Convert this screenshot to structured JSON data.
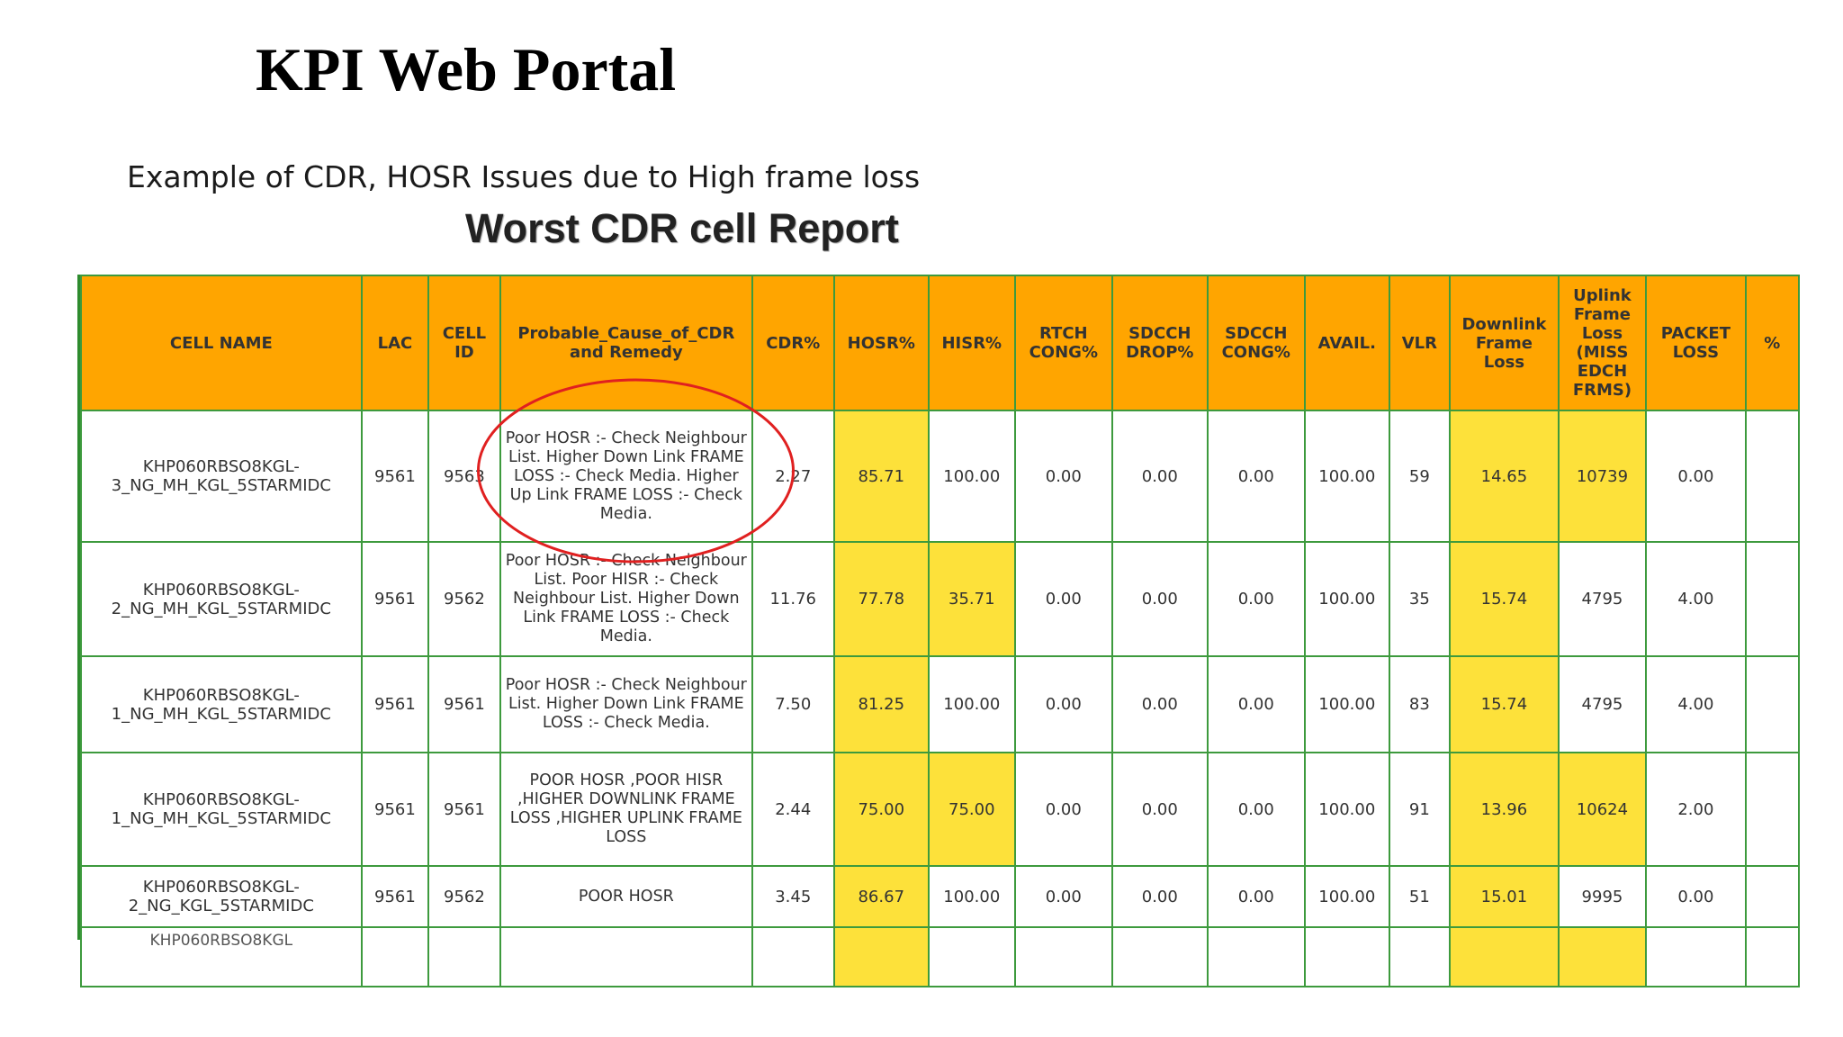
{
  "title": "KPI Web Portal",
  "subtitle": "Example of CDR, HOSR Issues due to High frame loss",
  "report_title": "Worst CDR cell Report",
  "colors": {
    "header": "#ffa500",
    "highlight": "#fde13a",
    "grid": "#3d9a3d",
    "annotation": "#e02020"
  },
  "table": {
    "headers": [
      "CELL NAME",
      "LAC",
      "CELL ID",
      "Probable_Cause_of_CDR and Remedy",
      "CDR%",
      "HOSR%",
      "HISR%",
      "RTCH CONG%",
      "SDCCH DROP%",
      "SDCCH CONG%",
      "AVAIL.",
      "VLR",
      "Downlink Frame Loss",
      "Uplink Frame Loss (MISS EDCH FRMS)",
      "PACKET LOSS",
      "%"
    ],
    "rows": [
      [
        "KHP060RBSO8KGL-3_NG_MH_KGL_5STARMIDC",
        "9561",
        "9563",
        "Poor HOSR :- Check Neighbour List. Higher Down Link FRAME LOSS :- Check Media. Higher Up Link FRAME LOSS :- Check Media.",
        "2.27",
        "85.71",
        "100.00",
        "0.00",
        "0.00",
        "0.00",
        "100.00",
        "59",
        "14.65",
        "10739",
        "0.00",
        ""
      ],
      [
        "KHP060RBSO8KGL-2_NG_MH_KGL_5STARMIDC",
        "9561",
        "9562",
        "Poor HOSR :- Check Neighbour List. Poor HISR :- Check Neighbour List. Higher Down Link FRAME LOSS :- Check Media.",
        "11.76",
        "77.78",
        "35.71",
        "0.00",
        "0.00",
        "0.00",
        "100.00",
        "35",
        "15.74",
        "4795",
        "4.00",
        ""
      ],
      [
        "KHP060RBSO8KGL-1_NG_MH_KGL_5STARMIDC",
        "9561",
        "9561",
        "Poor HOSR :- Check Neighbour List. Higher Down Link FRAME LOSS :- Check Media.",
        "7.50",
        "81.25",
        "100.00",
        "0.00",
        "0.00",
        "0.00",
        "100.00",
        "83",
        "15.74",
        "4795",
        "4.00",
        ""
      ],
      [
        "KHP060RBSO8KGL-1_NG_MH_KGL_5STARMIDC",
        "9561",
        "9561",
        "POOR HOSR ,POOR HISR ,HIGHER DOWNLINK FRAME LOSS ,HIGHER UPLINK FRAME LOSS",
        "2.44",
        "75.00",
        "75.00",
        "0.00",
        "0.00",
        "0.00",
        "100.00",
        "91",
        "13.96",
        "10624",
        "2.00",
        ""
      ],
      [
        "KHP060RBSO8KGL-2_NG_KGL_5STARMIDC",
        "9561",
        "9562",
        "POOR HOSR",
        "3.45",
        "86.67",
        "100.00",
        "0.00",
        "0.00",
        "0.00",
        "100.00",
        "51",
        "15.01",
        "9995",
        "0.00",
        ""
      ]
    ],
    "partial_row_cell_name": "KHP060RBSO8KGL"
  }
}
